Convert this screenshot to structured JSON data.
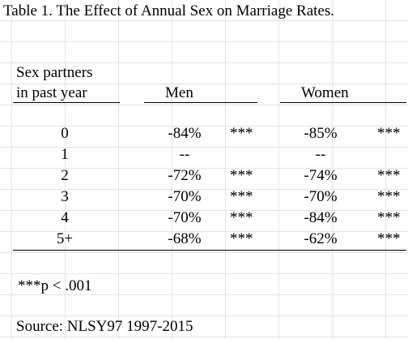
{
  "title": "Table 1. The Effect of Annual Sex on Marriage Rates.",
  "header": {
    "row_label_line1": "Sex partners",
    "row_label_line2": "in past year",
    "men": "Men",
    "women": "Women"
  },
  "rows": [
    {
      "partners": "0",
      "men": "-84%",
      "men_sig": "***",
      "women": "-85%",
      "women_sig": "***"
    },
    {
      "partners": "1",
      "men": "--",
      "men_sig": "",
      "women": "--",
      "women_sig": ""
    },
    {
      "partners": "2",
      "men": "-72%",
      "men_sig": "***",
      "women": "-74%",
      "women_sig": "***"
    },
    {
      "partners": "3",
      "men": "-70%",
      "men_sig": "***",
      "women": "-70%",
      "women_sig": "***"
    },
    {
      "partners": "4",
      "men": "-70%",
      "men_sig": "***",
      "women": "-84%",
      "women_sig": "***"
    },
    {
      "partners": "5+",
      "men": "-68%",
      "men_sig": "***",
      "women": "-62%",
      "women_sig": "***"
    }
  ],
  "note": "***p < .001",
  "source": "Source: NLSY97 1997-2015"
}
